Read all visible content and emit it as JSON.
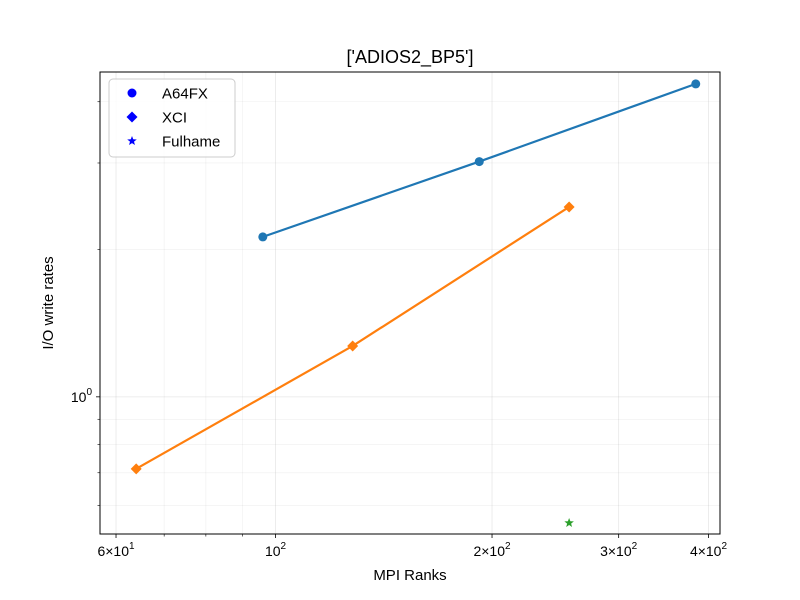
{
  "chart_data": {
    "type": "line",
    "title": "['ADIOS2_BP5']",
    "xlabel": "MPI Ranks",
    "ylabel": "I/O write rates",
    "xscale": "log",
    "yscale": "log",
    "xlim": [
      57,
      415
    ],
    "ylim": [
      0.525,
      4.6
    ],
    "grid": true,
    "legend_position": "upper left",
    "x_ticks": [
      {
        "value": 60,
        "base": "6×10",
        "exp": "1"
      },
      {
        "value": 100,
        "base": "10",
        "exp": "2"
      },
      {
        "value": 200,
        "base": "2×10",
        "exp": "2"
      },
      {
        "value": 300,
        "base": "3×10",
        "exp": "2"
      },
      {
        "value": 400,
        "base": "4×10",
        "exp": "2"
      }
    ],
    "x_minor_ticks": [
      70,
      80,
      90
    ],
    "y_ticks": [
      {
        "value": 1,
        "base": "10",
        "exp": "0"
      }
    ],
    "y_minor_ticks": [
      0.6,
      0.7,
      0.8,
      0.9,
      2,
      3,
      4
    ],
    "series": [
      {
        "name": "A64FX",
        "marker": "circle",
        "color": "#1f77b4",
        "x": [
          96,
          192,
          384
        ],
        "y": [
          2.12,
          3.02,
          4.35
        ]
      },
      {
        "name": "XCI",
        "marker": "diamond",
        "color": "#ff7f0e",
        "x": [
          64,
          128,
          256
        ],
        "y": [
          0.713,
          1.27,
          2.44
        ]
      },
      {
        "name": "Fulhame",
        "marker": "star",
        "color": "#2ca02c",
        "x": [
          256
        ],
        "y": [
          0.553
        ]
      }
    ],
    "legend": [
      {
        "label": "A64FX",
        "marker": "circle",
        "color": "#0000ff"
      },
      {
        "label": "XCI",
        "marker": "diamond",
        "color": "#0000ff"
      },
      {
        "label": "Fulhame",
        "marker": "star",
        "color": "#0000ff"
      }
    ]
  }
}
